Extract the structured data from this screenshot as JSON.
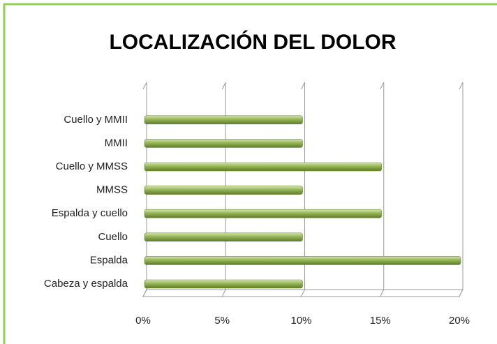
{
  "chart_data": {
    "type": "bar",
    "orientation": "horizontal",
    "title": "LOCALIZACIÓN DEL DOLOR",
    "categories": [
      "Cabeza y espalda",
      "Espalda",
      "Cuello",
      "Espalda y cuello",
      "MMSS",
      "Cuello y MMSS",
      "MMII",
      "Cuello y MMII"
    ],
    "values": [
      10,
      20,
      10,
      15,
      10,
      15,
      10,
      10
    ],
    "color": "#9bbb59",
    "xlim": [
      0,
      20
    ],
    "xticks": [
      {
        "value": 0,
        "label": "0%"
      },
      {
        "value": 5,
        "label": "5%"
      },
      {
        "value": 10,
        "label": "10%"
      },
      {
        "value": 15,
        "label": "15%"
      },
      {
        "value": 20,
        "label": "20%"
      }
    ],
    "grid": true
  }
}
